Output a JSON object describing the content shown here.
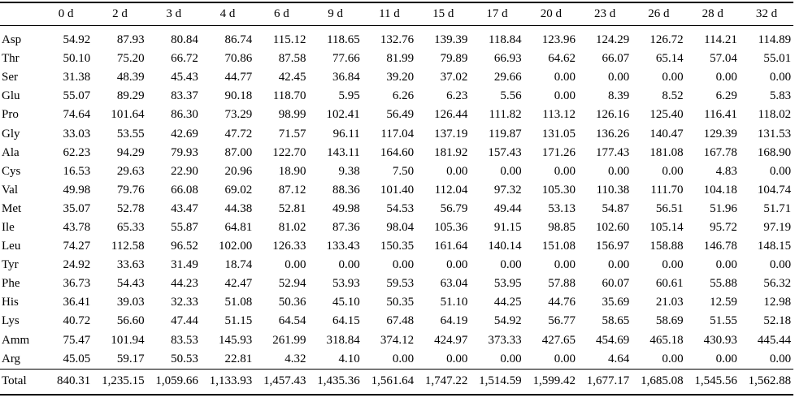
{
  "table": {
    "headers": [
      "",
      "0 d",
      "2 d",
      "3 d",
      "4 d",
      "6 d",
      "9 d",
      "11 d",
      "15 d",
      "17 d",
      "20 d",
      "23 d",
      "26 d",
      "28 d",
      "32 d"
    ],
    "rows": [
      {
        "label": "Asp",
        "values": [
          "54.92",
          "87.93",
          "80.84",
          "86.74",
          "115.12",
          "118.65",
          "132.76",
          "139.39",
          "118.84",
          "123.96",
          "124.29",
          "126.72",
          "114.21",
          "114.89"
        ]
      },
      {
        "label": "Thr",
        "values": [
          "50.10",
          "75.20",
          "66.72",
          "70.86",
          "87.58",
          "77.66",
          "81.99",
          "79.89",
          "66.93",
          "64.62",
          "66.07",
          "65.14",
          "57.04",
          "55.01"
        ]
      },
      {
        "label": "Ser",
        "values": [
          "31.38",
          "48.39",
          "45.43",
          "44.77",
          "42.45",
          "36.84",
          "39.20",
          "37.02",
          "29.66",
          "0.00",
          "0.00",
          "0.00",
          "0.00",
          "0.00"
        ]
      },
      {
        "label": "Glu",
        "values": [
          "55.07",
          "89.29",
          "83.37",
          "90.18",
          "118.70",
          "5.95",
          "6.26",
          "6.23",
          "5.56",
          "0.00",
          "8.39",
          "8.52",
          "6.29",
          "5.83"
        ]
      },
      {
        "label": "Pro",
        "values": [
          "74.64",
          "101.64",
          "86.30",
          "73.29",
          "98.99",
          "102.41",
          "56.49",
          "126.44",
          "111.82",
          "113.12",
          "126.16",
          "125.40",
          "116.41",
          "118.02"
        ]
      },
      {
        "label": "Gly",
        "values": [
          "33.03",
          "53.55",
          "42.69",
          "47.72",
          "71.57",
          "96.11",
          "117.04",
          "137.19",
          "119.87",
          "131.05",
          "136.26",
          "140.47",
          "129.39",
          "131.53"
        ]
      },
      {
        "label": "Ala",
        "values": [
          "62.23",
          "94.29",
          "79.93",
          "87.00",
          "122.70",
          "143.11",
          "164.60",
          "181.92",
          "157.43",
          "171.26",
          "177.43",
          "181.08",
          "167.78",
          "168.90"
        ]
      },
      {
        "label": "Cys",
        "values": [
          "16.53",
          "29.63",
          "22.90",
          "20.96",
          "18.90",
          "9.38",
          "7.50",
          "0.00",
          "0.00",
          "0.00",
          "0.00",
          "0.00",
          "4.83",
          "0.00"
        ]
      },
      {
        "label": "Val",
        "values": [
          "49.98",
          "79.76",
          "66.08",
          "69.02",
          "87.12",
          "88.36",
          "101.40",
          "112.04",
          "97.32",
          "105.30",
          "110.38",
          "111.70",
          "104.18",
          "104.74"
        ]
      },
      {
        "label": "Met",
        "values": [
          "35.07",
          "52.78",
          "43.47",
          "44.38",
          "52.81",
          "49.98",
          "54.53",
          "56.79",
          "49.44",
          "53.13",
          "54.87",
          "56.51",
          "51.96",
          "51.71"
        ]
      },
      {
        "label": "Ile",
        "values": [
          "43.78",
          "65.33",
          "55.87",
          "64.81",
          "81.02",
          "87.36",
          "98.04",
          "105.36",
          "91.15",
          "98.85",
          "102.60",
          "105.14",
          "95.72",
          "97.19"
        ]
      },
      {
        "label": "Leu",
        "values": [
          "74.27",
          "112.58",
          "96.52",
          "102.00",
          "126.33",
          "133.43",
          "150.35",
          "161.64",
          "140.14",
          "151.08",
          "156.97",
          "158.88",
          "146.78",
          "148.15"
        ]
      },
      {
        "label": "Tyr",
        "values": [
          "24.92",
          "33.63",
          "31.49",
          "18.74",
          "0.00",
          "0.00",
          "0.00",
          "0.00",
          "0.00",
          "0.00",
          "0.00",
          "0.00",
          "0.00",
          "0.00"
        ]
      },
      {
        "label": "Phe",
        "values": [
          "36.73",
          "54.43",
          "44.23",
          "42.47",
          "52.94",
          "53.93",
          "59.53",
          "63.04",
          "53.95",
          "57.88",
          "60.07",
          "60.61",
          "55.88",
          "56.32"
        ]
      },
      {
        "label": "His",
        "values": [
          "36.41",
          "39.03",
          "32.33",
          "51.08",
          "50.36",
          "45.10",
          "50.35",
          "51.10",
          "44.25",
          "44.76",
          "35.69",
          "21.03",
          "12.59",
          "12.98"
        ]
      },
      {
        "label": "Lys",
        "values": [
          "40.72",
          "56.60",
          "47.44",
          "51.15",
          "64.54",
          "64.15",
          "67.48",
          "64.19",
          "54.92",
          "56.77",
          "58.65",
          "58.69",
          "51.55",
          "52.18"
        ]
      },
      {
        "label": "Amm",
        "values": [
          "75.47",
          "101.94",
          "83.53",
          "145.93",
          "261.99",
          "318.84",
          "374.12",
          "424.97",
          "373.33",
          "427.65",
          "454.69",
          "465.18",
          "430.93",
          "445.44"
        ]
      },
      {
        "label": "Arg",
        "values": [
          "45.05",
          "59.17",
          "50.53",
          "22.81",
          "4.32",
          "4.10",
          "0.00",
          "0.00",
          "0.00",
          "0.00",
          "4.64",
          "0.00",
          "0.00",
          "0.00"
        ]
      }
    ],
    "total": {
      "label": "Total",
      "values": [
        "840.31",
        "1,235.15",
        "1,059.66",
        "1,133.93",
        "1,457.43",
        "1,435.36",
        "1,561.64",
        "1,747.22",
        "1,514.59",
        "1,599.42",
        "1,677.17",
        "1,685.08",
        "1,545.56",
        "1,562.88"
      ]
    }
  }
}
